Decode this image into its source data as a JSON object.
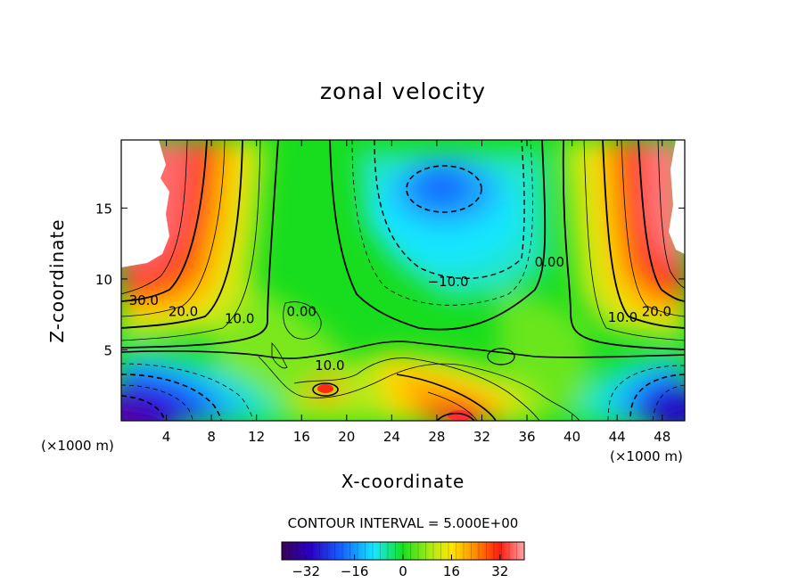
{
  "chart_data": {
    "type": "heatmap",
    "subtype": "filled contour",
    "title": "zonal velocity",
    "xlabel": "X-coordinate",
    "ylabel": "Z-coordinate",
    "x_unit_label": "(×1000 m)",
    "x_ticks": [
      4,
      8,
      12,
      16,
      20,
      24,
      28,
      32,
      36,
      40,
      44,
      48
    ],
    "y_ticks": [
      5,
      10,
      15
    ],
    "xlim": [
      0,
      50
    ],
    "ylim": [
      0,
      19.8
    ],
    "contour_interval_text": "CONTOUR INTERVAL = 5.000E+00",
    "colorbar": {
      "range": [
        -40,
        40
      ],
      "ticks": [
        -32,
        -16,
        0,
        16,
        32
      ],
      "tick_labels": [
        "−32",
        "−16",
        "0",
        "16",
        "32"
      ],
      "colormap": "rainbow (purple-blue-cyan-green-yellow-red-pink)"
    },
    "contour_labels": [
      {
        "text": "30.0",
        "x": 2,
        "z": 8.5
      },
      {
        "text": "20.0",
        "x": 5.5,
        "z": 7.7
      },
      {
        "text": "10.0",
        "x": 10.5,
        "z": 7.2
      },
      {
        "text": "0.00",
        "x": 16,
        "z": 7.7
      },
      {
        "text": "10.0",
        "x": 18.5,
        "z": 3.9
      },
      {
        "text": "−10.0",
        "x": 29,
        "z": 9.8
      },
      {
        "text": "0.00",
        "x": 38,
        "z": 11.2
      },
      {
        "text": "10.0",
        "x": 44.5,
        "z": 7.3
      },
      {
        "text": "20.0",
        "x": 47.5,
        "z": 7.7
      }
    ],
    "notable_values": [
      {
        "region": "upper-left corner",
        "x": 2,
        "z": 16,
        "value": 45,
        "note": "exceeds colorbar max (white)"
      },
      {
        "region": "upper-right corner",
        "x": 49,
        "z": 14,
        "value": 42
      },
      {
        "region": "upper-middle minimum",
        "x": 29,
        "z": 16.5,
        "value": -18
      },
      {
        "region": "lower-left minimum",
        "x": 1,
        "z": 0.5,
        "value": -35
      },
      {
        "region": "lower-right minimum",
        "x": 49,
        "z": 1.5,
        "value": -30
      },
      {
        "region": "bottom-center maximum",
        "x": 30,
        "z": 0.5,
        "value": 30
      },
      {
        "region": "small maximum",
        "x": 18,
        "z": 2.4,
        "value": 28
      }
    ]
  }
}
